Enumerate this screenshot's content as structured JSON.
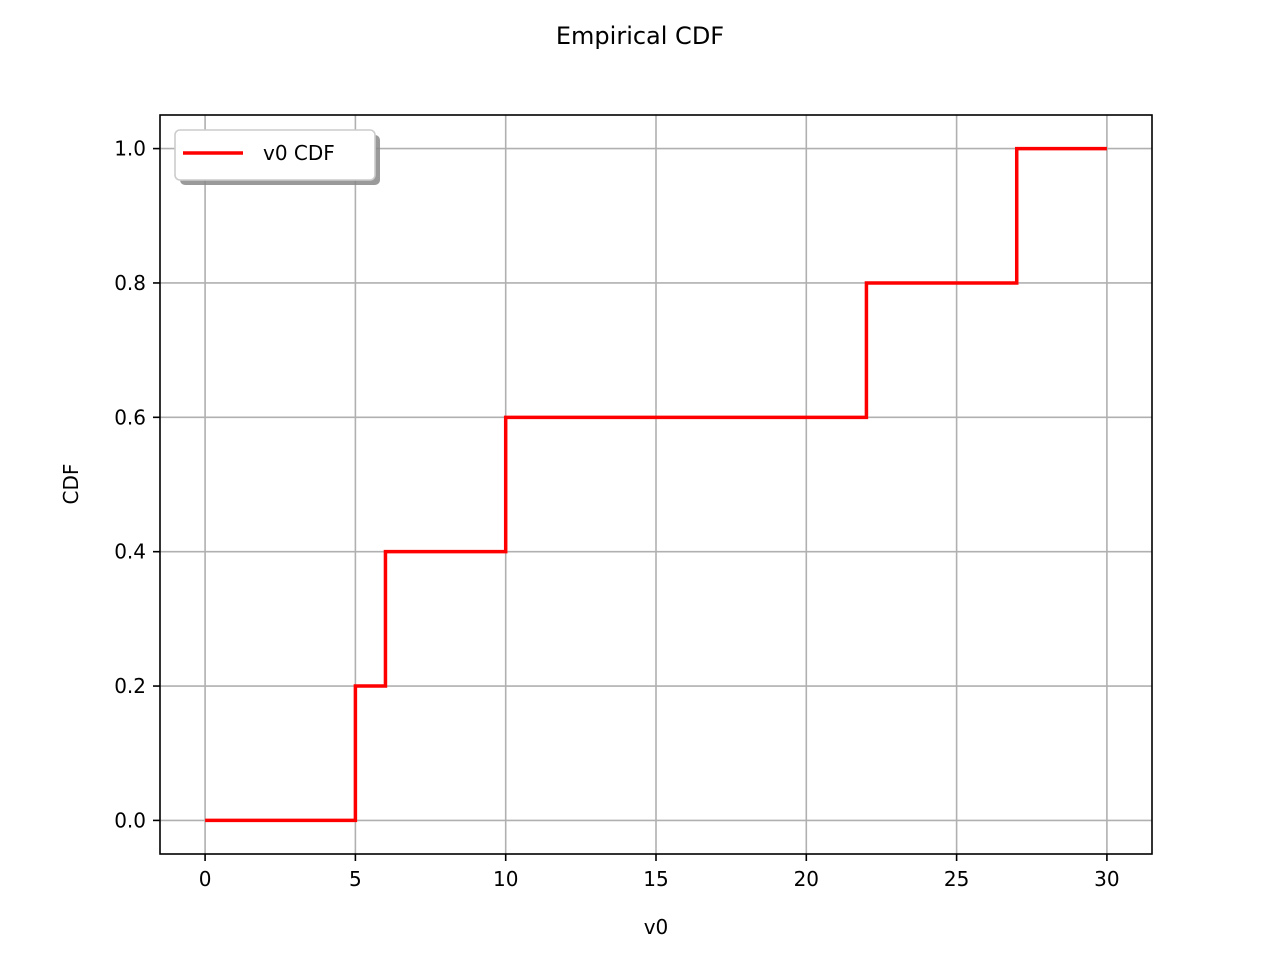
{
  "chart_data": {
    "type": "line",
    "title": "Empirical CDF",
    "xlabel": "v0",
    "ylabel": "CDF",
    "xlim": [
      -1.5,
      31.5
    ],
    "ylim": [
      -0.05,
      1.05
    ],
    "xticks": [
      0,
      5,
      10,
      15,
      20,
      25,
      30
    ],
    "xtick_labels": [
      "0",
      "5",
      "10",
      "15",
      "20",
      "25",
      "30"
    ],
    "yticks": [
      0.0,
      0.2,
      0.4,
      0.6,
      0.8,
      1.0
    ],
    "ytick_labels": [
      "0.0",
      "0.2",
      "0.4",
      "0.6",
      "0.8",
      "1.0"
    ],
    "grid": true,
    "legend_position": "upper left",
    "series": [
      {
        "name": "v0 CDF",
        "color": "#ff0000",
        "step": "post",
        "x": [
          0,
          5,
          6,
          10,
          22,
          27,
          30
        ],
        "y": [
          0.0,
          0.2,
          0.4,
          0.6,
          0.8,
          1.0,
          1.0
        ]
      }
    ]
  }
}
